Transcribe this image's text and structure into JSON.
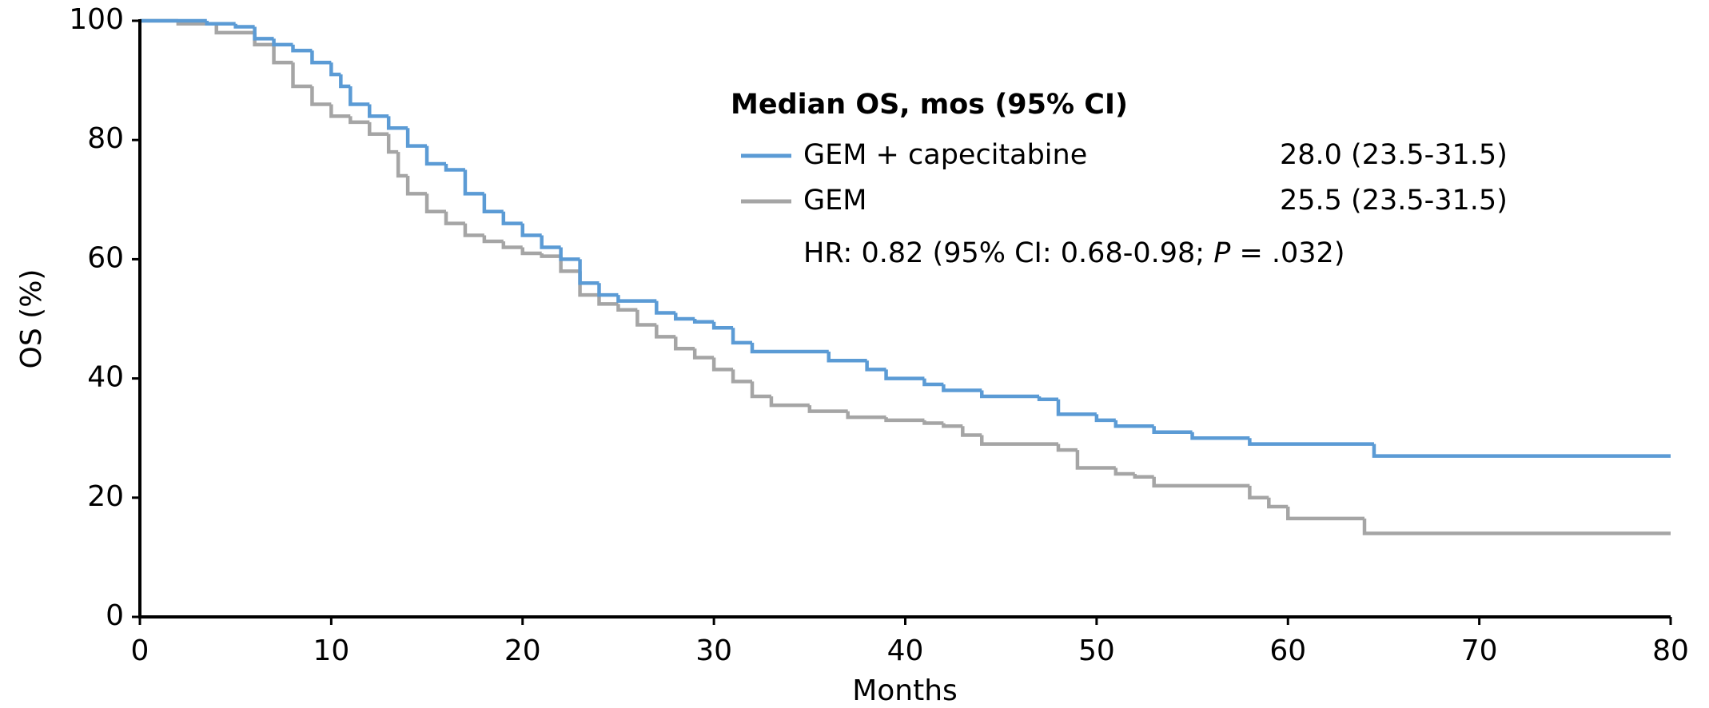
{
  "chart_data": {
    "type": "step",
    "xlabel": "Months",
    "ylabel": "OS (%)",
    "xlim": [
      0,
      80
    ],
    "xticks": [
      0,
      10,
      20,
      30,
      40,
      50,
      60,
      70,
      80
    ],
    "ylim": [
      0,
      100
    ],
    "yticks": [
      0,
      20,
      40,
      60,
      80,
      100
    ],
    "legend_title": "Median OS, mos (95% CI)",
    "hr_text": [
      "HR: 0.82 (95% CI: 0.68-0.98; ",
      "P",
      " = .032)"
    ],
    "series": [
      {
        "name": "GEM + capecitabine",
        "median_label": "28.0 (23.5-31.5)",
        "color": "#5b9bd5",
        "x": [
          0,
          3.5,
          5,
          6,
          7,
          8,
          9,
          10,
          10.5,
          11,
          12,
          13,
          14,
          15,
          16,
          17,
          18,
          19,
          20,
          21,
          22,
          23,
          24,
          25,
          27,
          28,
          29,
          30,
          31,
          32,
          36,
          38,
          39,
          41,
          42,
          44,
          47,
          48,
          50,
          51,
          53,
          55,
          58,
          64.5,
          80
        ],
        "values": [
          100,
          99.5,
          99,
          97,
          96,
          95,
          93,
          91,
          89,
          86,
          84,
          82,
          79,
          76,
          75,
          71,
          68,
          66,
          64,
          62,
          60,
          56,
          54,
          53,
          51,
          50,
          49.5,
          48.5,
          46,
          44.5,
          43,
          41.5,
          40,
          39,
          38,
          37,
          36.5,
          34,
          33,
          32,
          31,
          30,
          29,
          27,
          27
        ]
      },
      {
        "name": "GEM",
        "median_label": "25.5 (23.5-31.5)",
        "color": "#a5a5a5",
        "x": [
          0,
          2,
          4,
          6,
          7,
          8,
          9,
          10,
          11,
          12,
          13,
          13.5,
          14,
          15,
          16,
          17,
          18,
          19,
          20,
          21,
          22,
          23,
          24,
          25,
          26,
          27,
          28,
          29,
          30,
          31,
          32,
          33,
          35,
          37,
          39,
          41,
          42,
          43,
          44,
          48,
          49,
          51,
          52,
          53,
          58,
          59,
          60,
          64,
          80
        ],
        "values": [
          100,
          99.5,
          98,
          96,
          93,
          89,
          86,
          84,
          83,
          81,
          78,
          74,
          71,
          68,
          66,
          64,
          63,
          62,
          61,
          60.5,
          58,
          54,
          52.5,
          51.5,
          49,
          47,
          45,
          43.5,
          41.5,
          39.5,
          37,
          35.5,
          34.5,
          33.5,
          33,
          32.5,
          32,
          30.5,
          29,
          28,
          25,
          24,
          23.5,
          22,
          20,
          18.5,
          16.5,
          14,
          14
        ]
      }
    ]
  }
}
